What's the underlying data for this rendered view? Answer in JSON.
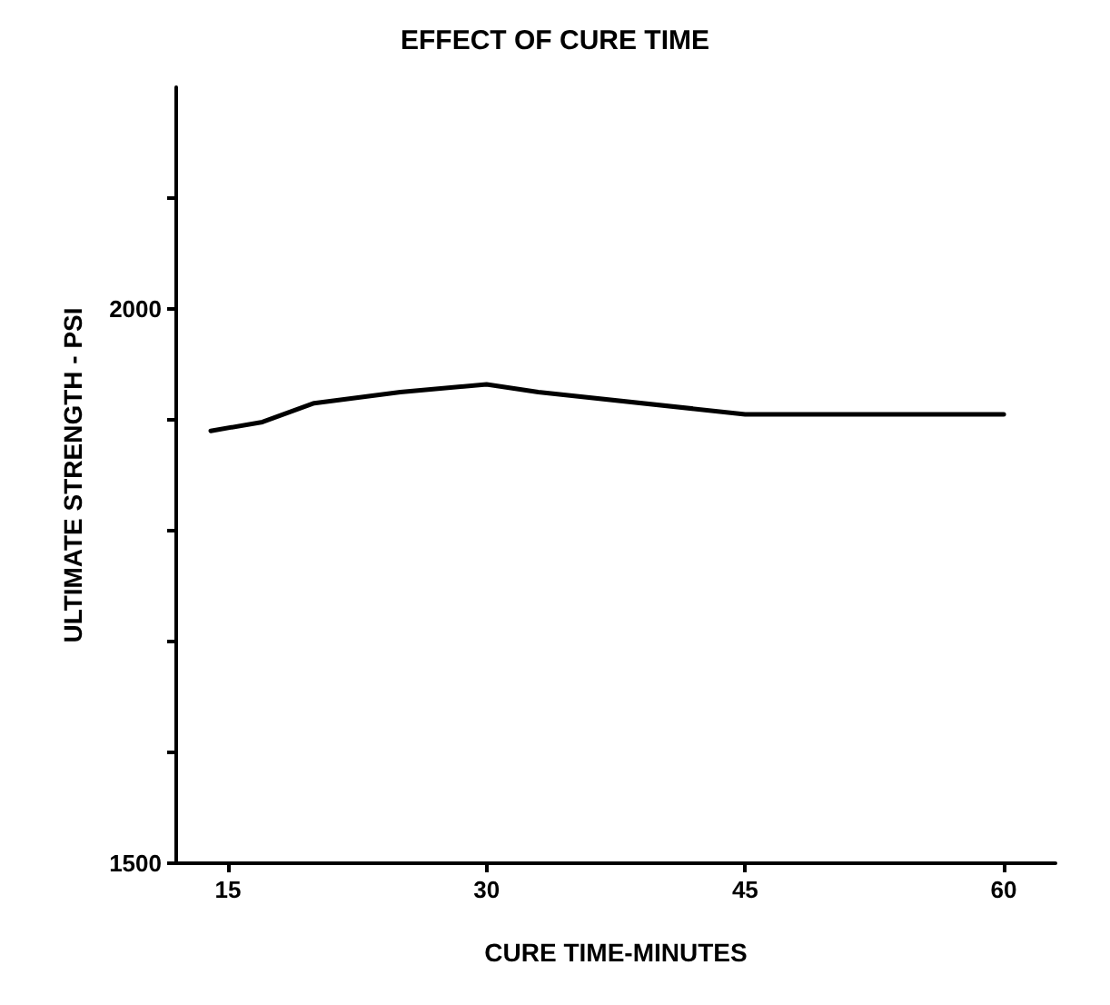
{
  "chart_data": {
    "type": "line",
    "title": "EFFECT OF CURE TIME",
    "xlabel": "CURE TIME-MINUTES",
    "ylabel": "ULTIMATE STRENGTH - PSI",
    "x": [
      14,
      17,
      20,
      25,
      30,
      33,
      45,
      60
    ],
    "series": [
      {
        "color": "#000000",
        "values": [
          1890,
          1898,
          1915,
          1925,
          1932,
          1925,
          1905,
          1905
        ]
      }
    ],
    "xlim": [
      12,
      63
    ],
    "xticks": [
      15,
      30,
      45,
      60
    ],
    "ylim": [
      1500,
      2200
    ],
    "yticks": [
      1500,
      {
        "value": 1600,
        "label": null
      },
      {
        "value": 1700,
        "label": null
      },
      {
        "value": 1800,
        "label": null
      },
      {
        "value": 1900,
        "label": null
      },
      2000,
      {
        "value": 2100,
        "label": null
      }
    ],
    "grid": false,
    "marker": "none",
    "line_style": "solid"
  }
}
